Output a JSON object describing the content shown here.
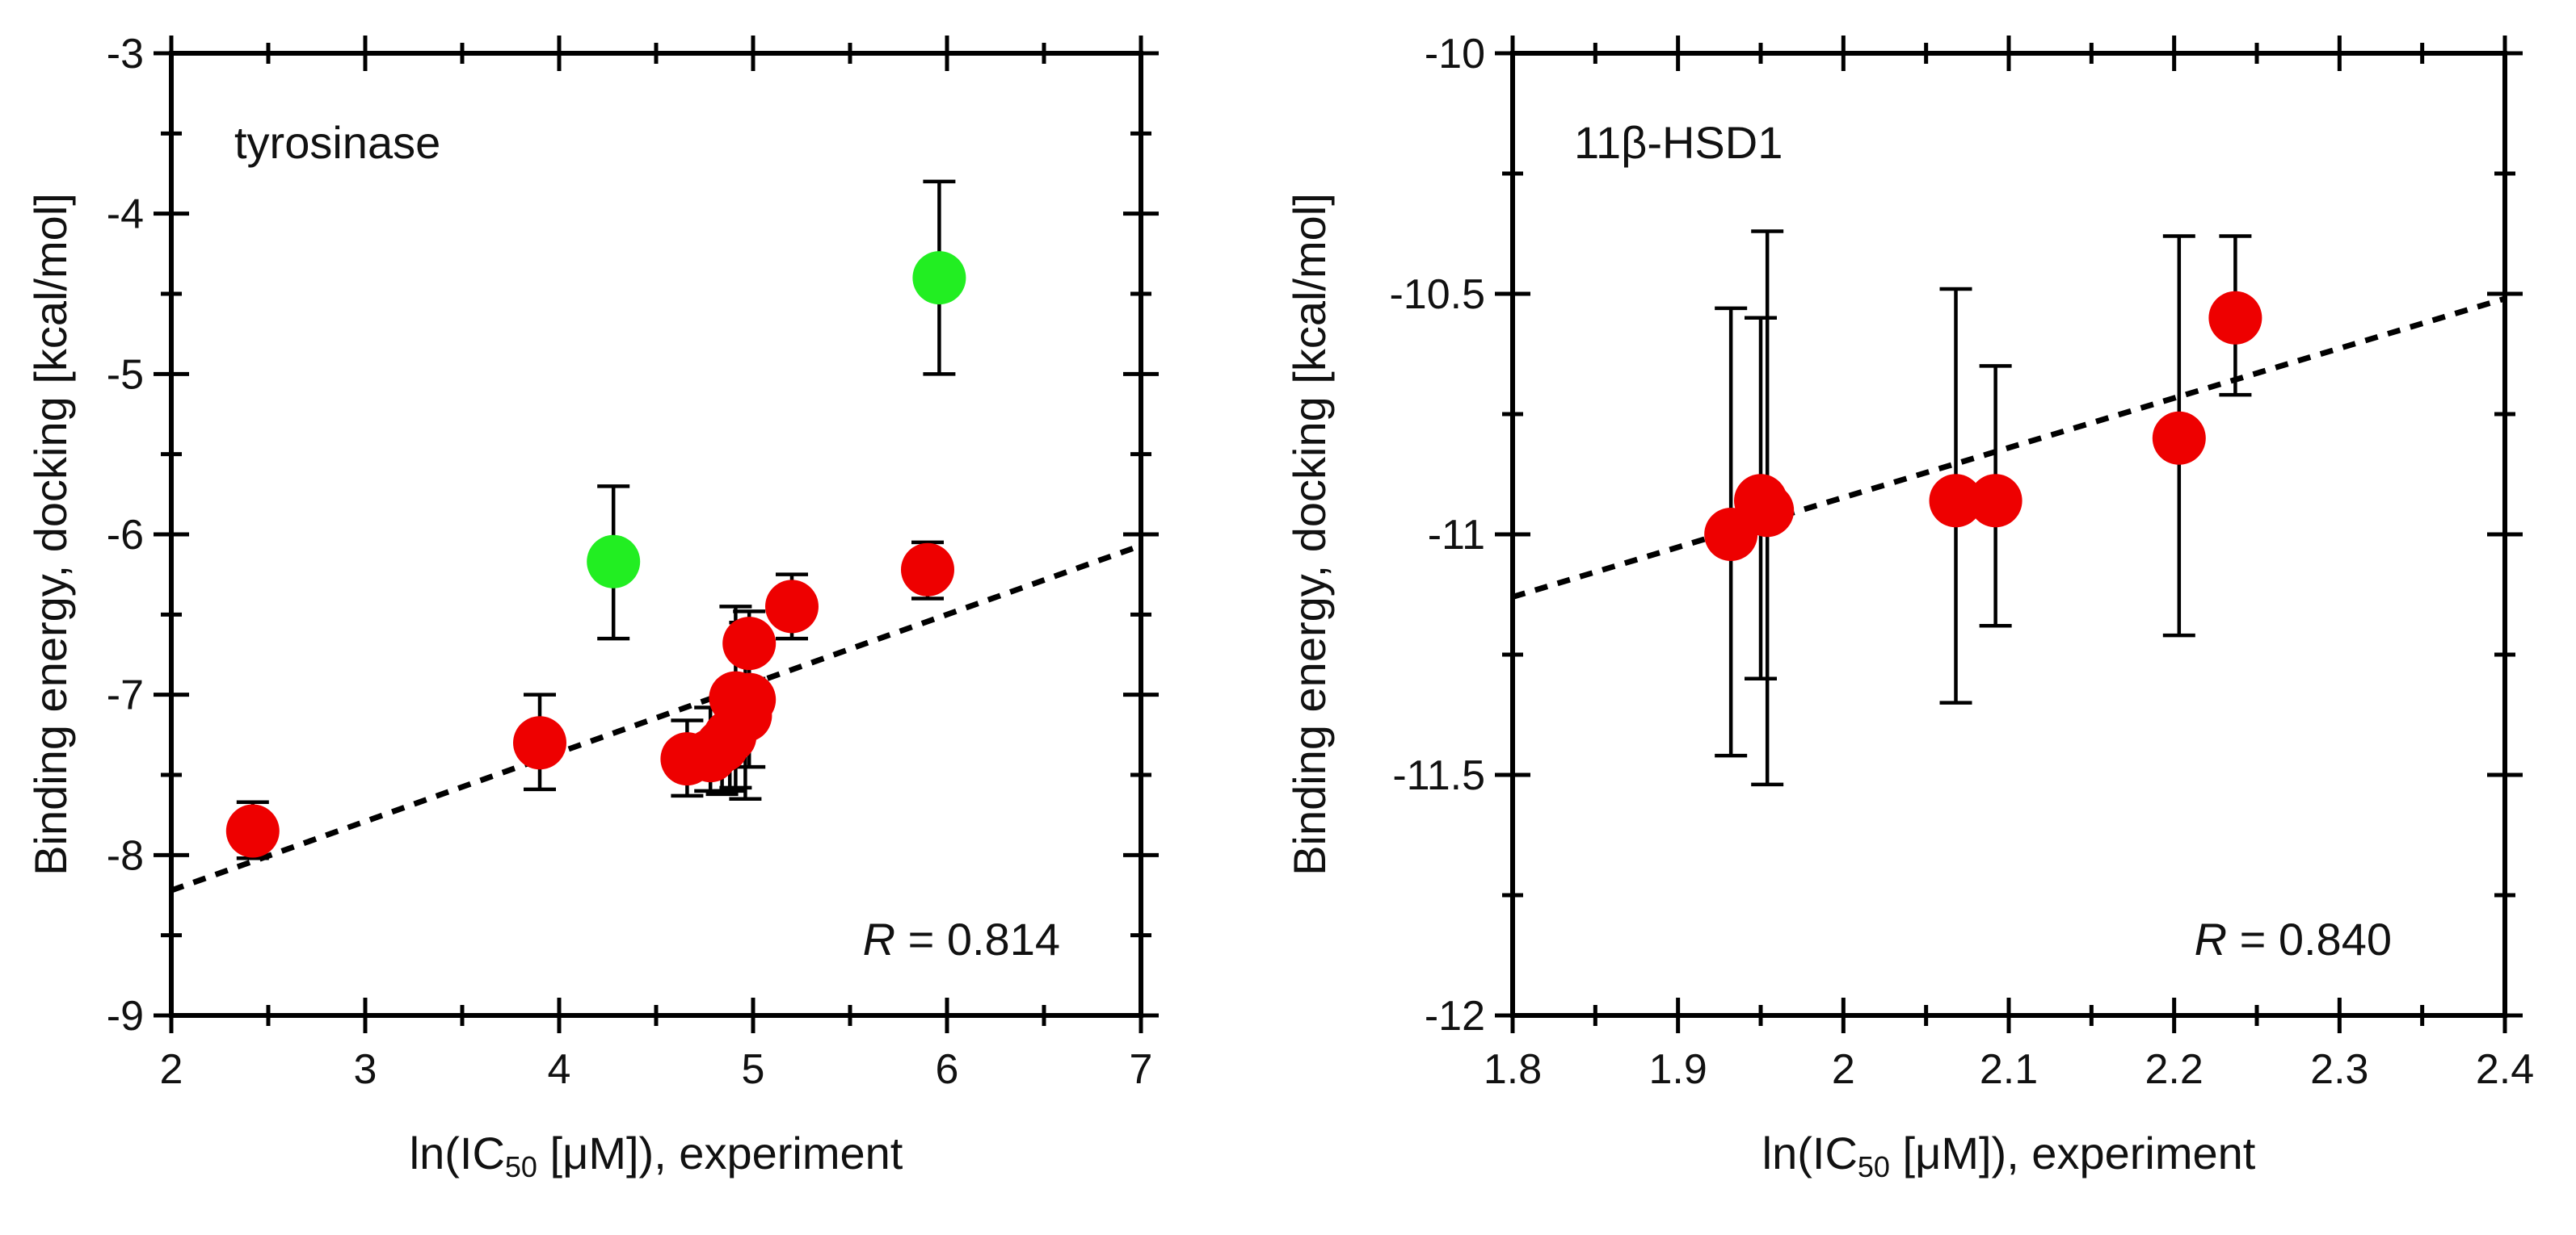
{
  "chart_data": [
    {
      "type": "scatter",
      "panel_label": "tyrosinase",
      "r_prefix": "R",
      "r_value": " = 0.814",
      "xlabel": {
        "pre": "ln(IC",
        "sub": "50",
        "post": " [μM]), experiment"
      },
      "ylabel": "Binding energy, docking [kcal/mol]",
      "xlim": [
        2,
        7
      ],
      "ylim": [
        -9,
        -3
      ],
      "x_ticks": [
        2,
        3,
        4,
        5,
        6,
        7
      ],
      "x_tick_labels": [
        "2",
        "3",
        "4",
        "5",
        "6",
        "7"
      ],
      "y_ticks": [
        -9,
        -8,
        -7,
        -6,
        -5,
        -4,
        -3
      ],
      "y_tick_labels": [
        "-9",
        "-8",
        "-7",
        "-6",
        "-5",
        "-4",
        "-3"
      ],
      "x_minor_step": 0.5,
      "y_minor_step": 0.5,
      "fit_line": {
        "x": [
          2,
          7
        ],
        "y": [
          -8.22,
          -6.07
        ]
      },
      "points": [
        {
          "x": 2.42,
          "y": -7.85,
          "err_low": -8.02,
          "err_high": -7.67,
          "color": "#ee0000"
        },
        {
          "x": 3.9,
          "y": -7.3,
          "err_low": -7.59,
          "err_high": -7.0,
          "color": "#ee0000"
        },
        {
          "x": 4.28,
          "y": -6.17,
          "err_low": -6.65,
          "err_high": -5.7,
          "color": "#22ee22"
        },
        {
          "x": 4.66,
          "y": -7.4,
          "err_low": -7.63,
          "err_high": -7.16,
          "color": "#ee0000"
        },
        {
          "x": 4.78,
          "y": -7.38,
          "err_low": -7.6,
          "err_high": -7.08,
          "color": "#ee0000"
        },
        {
          "x": 4.84,
          "y": -7.32,
          "err_low": -7.62,
          "err_high": -7.03,
          "color": "#ee0000"
        },
        {
          "x": 4.88,
          "y": -7.26,
          "err_low": -7.6,
          "err_high": -7.05,
          "color": "#ee0000"
        },
        {
          "x": 4.91,
          "y": -7.02,
          "err_low": -7.58,
          "err_high": -6.45,
          "color": "#ee0000"
        },
        {
          "x": 4.96,
          "y": -7.13,
          "err_low": -7.65,
          "err_high": -6.55,
          "color": "#ee0000"
        },
        {
          "x": 4.98,
          "y": -7.03,
          "err_low": -7.45,
          "err_high": -6.6,
          "color": "#ee0000"
        },
        {
          "x": 4.98,
          "y": -6.68,
          "err_low": -6.9,
          "err_high": -6.48,
          "color": "#ee0000"
        },
        {
          "x": 5.2,
          "y": -6.45,
          "err_low": -6.65,
          "err_high": -6.25,
          "color": "#ee0000"
        },
        {
          "x": 5.9,
          "y": -6.22,
          "err_low": -6.4,
          "err_high": -6.05,
          "color": "#ee0000"
        },
        {
          "x": 5.96,
          "y": -4.4,
          "err_low": -5.0,
          "err_high": -3.8,
          "color": "#22ee22"
        }
      ]
    },
    {
      "type": "scatter",
      "panel_label": "11β-HSD1",
      "r_prefix": "R",
      "r_value": " = 0.840",
      "xlabel": {
        "pre": "ln(IC",
        "sub": "50",
        "post": " [μM]), experiment"
      },
      "ylabel": "Binding energy, docking [kcal/mol]",
      "xlim": [
        1.8,
        2.4
      ],
      "ylim": [
        -12,
        -10
      ],
      "x_ticks": [
        1.8,
        1.9,
        2.0,
        2.1,
        2.2,
        2.3,
        2.4
      ],
      "x_tick_labels": [
        "1.8",
        "1.9",
        "2",
        "2.1",
        "2.2",
        "2.3",
        "2.4"
      ],
      "y_ticks": [
        -12,
        -11.5,
        -11,
        -10.5,
        -10
      ],
      "y_tick_labels": [
        "-12",
        "-11.5",
        "-11",
        "-10.5",
        "-10"
      ],
      "x_minor_step": 0.05,
      "y_minor_step": 0.25,
      "fit_line": {
        "x": [
          1.8,
          2.4
        ],
        "y": [
          -11.13,
          -10.51
        ]
      },
      "points": [
        {
          "x": 1.932,
          "y": -11.0,
          "err_low": -11.46,
          "err_high": -10.53,
          "color": "#ee0000"
        },
        {
          "x": 1.95,
          "y": -10.93,
          "err_low": -11.3,
          "err_high": -10.55,
          "color": "#ee0000"
        },
        {
          "x": 1.954,
          "y": -10.95,
          "err_low": -11.52,
          "err_high": -10.37,
          "color": "#ee0000"
        },
        {
          "x": 2.068,
          "y": -10.93,
          "err_low": -11.35,
          "err_high": -10.49,
          "color": "#ee0000"
        },
        {
          "x": 2.092,
          "y": -10.93,
          "err_low": -11.19,
          "err_high": -10.65,
          "color": "#ee0000"
        },
        {
          "x": 2.203,
          "y": -10.8,
          "err_low": -11.21,
          "err_high": -10.38,
          "color": "#ee0000"
        },
        {
          "x": 2.237,
          "y": -10.55,
          "err_low": -10.71,
          "err_high": -10.38,
          "color": "#ee0000"
        }
      ]
    }
  ]
}
